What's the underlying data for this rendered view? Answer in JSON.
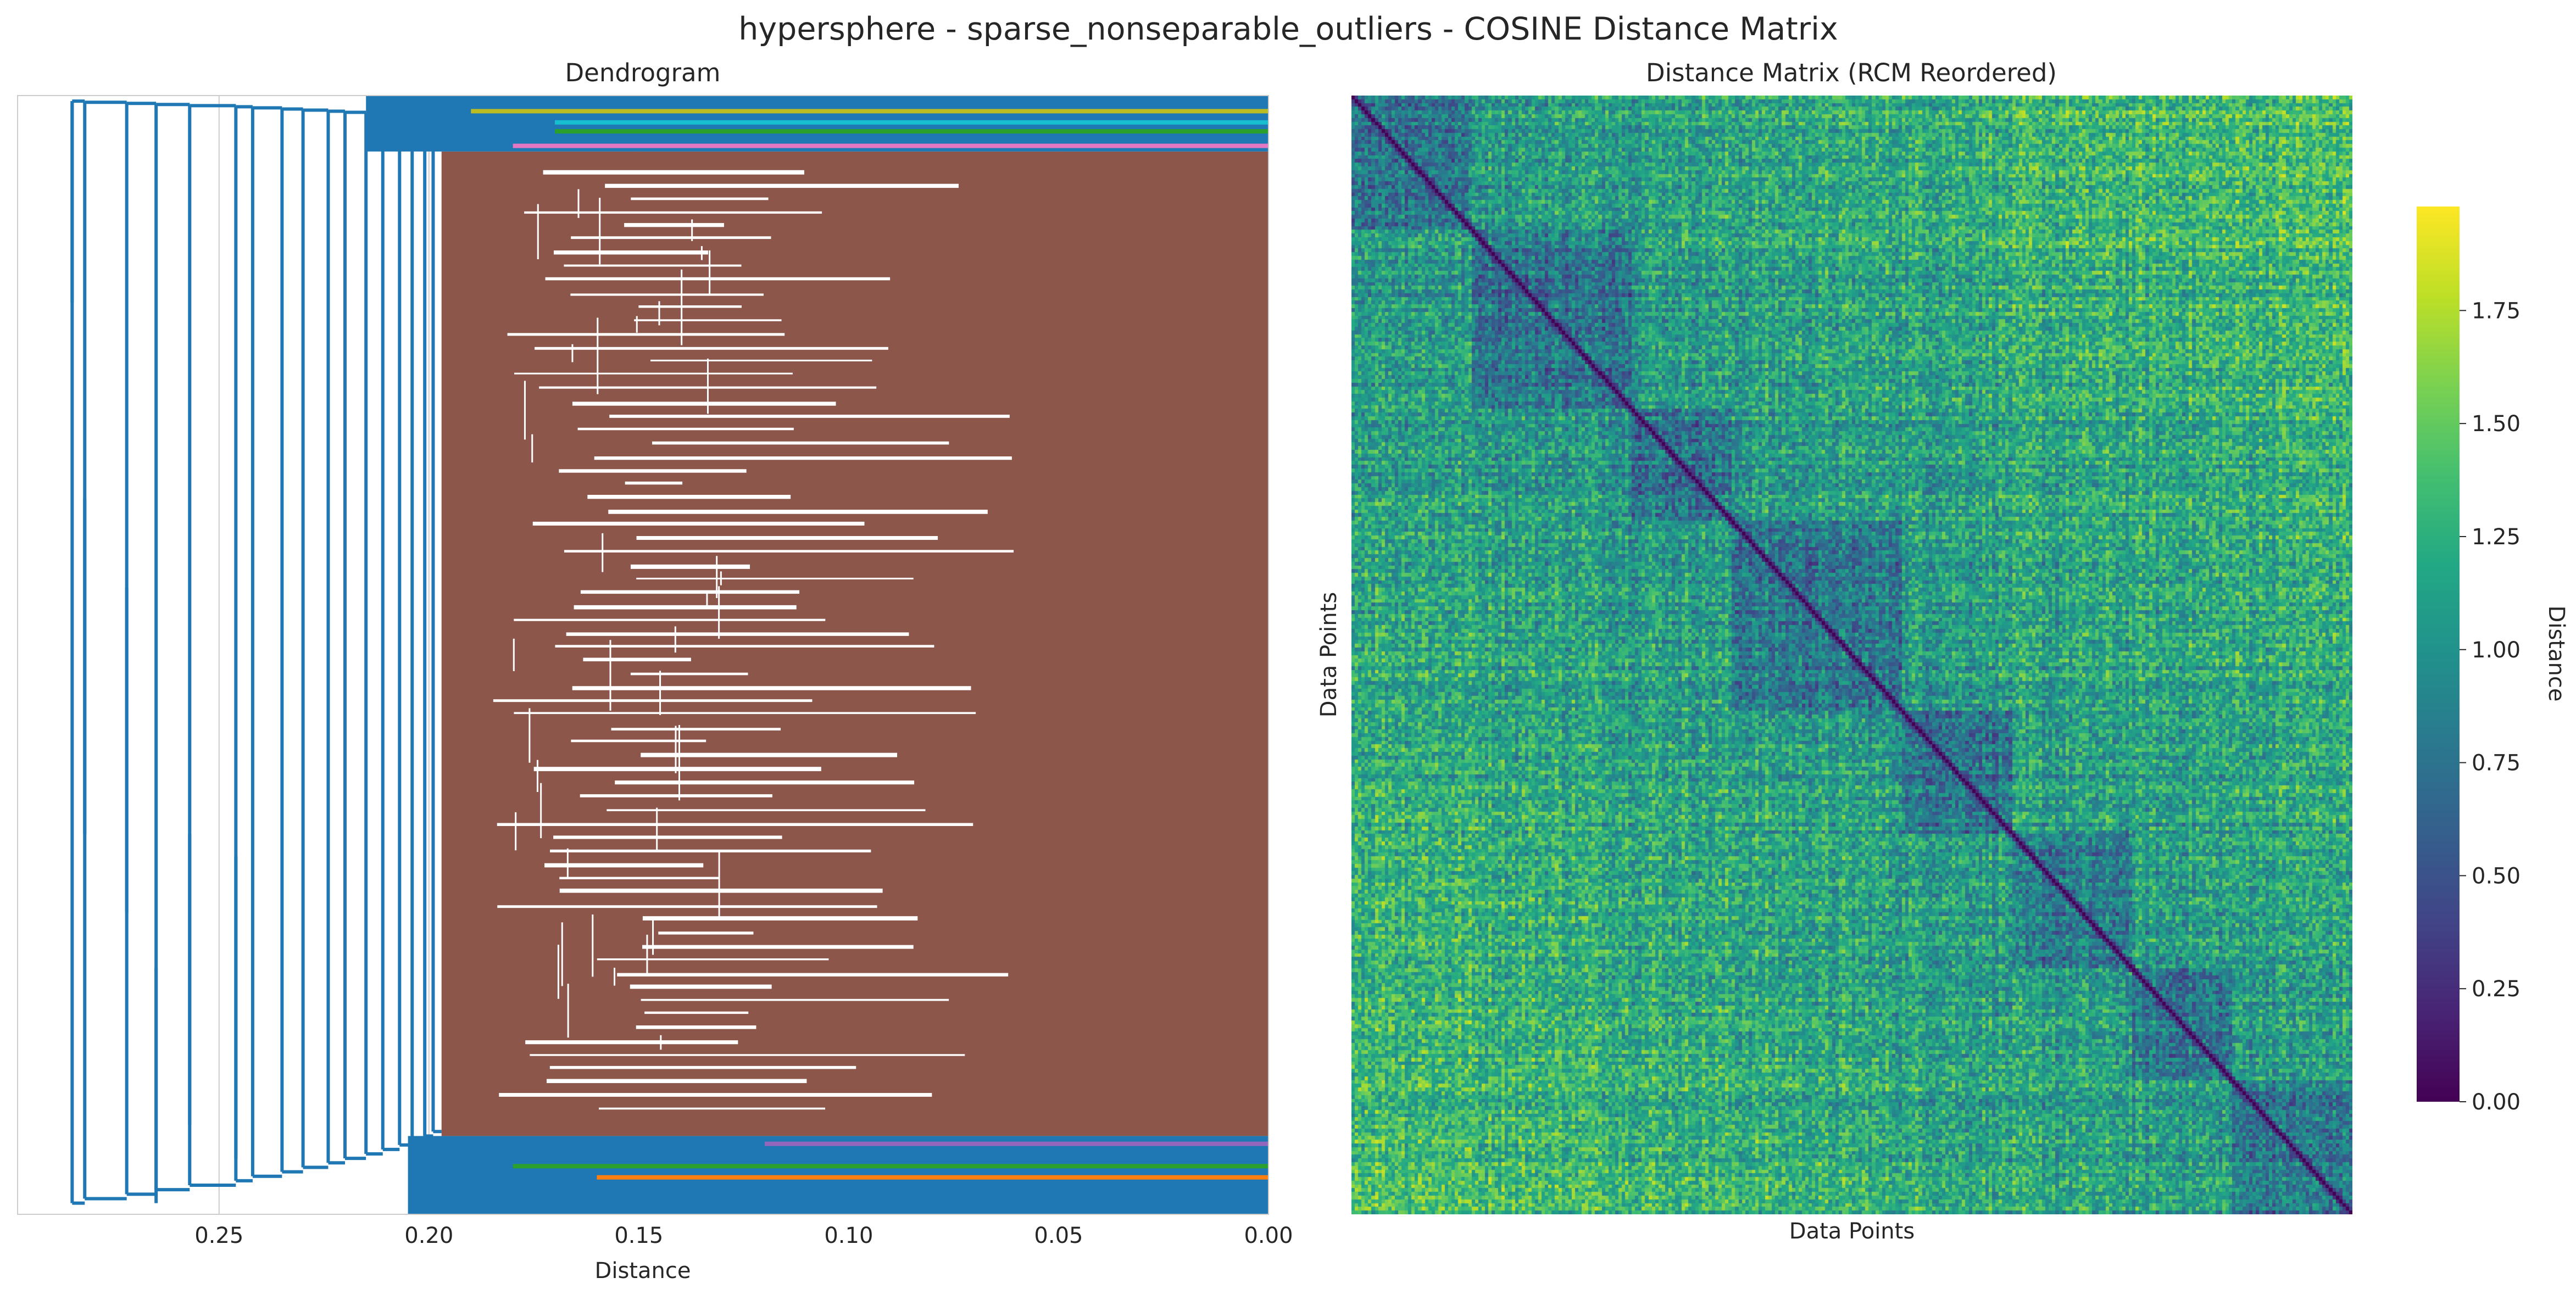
{
  "figure": {
    "title": "hypersphere - sparse_nonseparable_outliers - COSINE Distance Matrix"
  },
  "colors": {
    "primary_link": "#1f77b4",
    "cluster_main": "#8c564b",
    "cluster_orange": "#ff7f0e",
    "cluster_green": "#2ca02c",
    "cluster_pink": "#e377c2",
    "cluster_purple": "#9467bd",
    "cluster_olive": "#bcbd22",
    "cluster_teal": "#17becf"
  },
  "chart_data": [
    {
      "type": "dendrogram",
      "title": "Dendrogram",
      "xlabel": "Distance",
      "ylabel": "",
      "xlim": [
        0.298,
        0.0
      ],
      "xticks": [
        0.25,
        0.2,
        0.15,
        0.1,
        0.05,
        0.0
      ],
      "xtick_labels": [
        "0.25",
        "0.20",
        "0.15",
        "0.10",
        "0.05",
        "0.00"
      ],
      "grid": true,
      "link_color": "#1f77b4",
      "main_cluster": {
        "color": "#8c564b",
        "merge_distance": 0.197,
        "top_fraction": 0.05,
        "bottom_fraction": 0.93
      },
      "backbone_merges": [
        0.285,
        0.282,
        0.272,
        0.265,
        0.257,
        0.246,
        0.242,
        0.235,
        0.23,
        0.224,
        0.22,
        0.215,
        0.211,
        0.207,
        0.204,
        0.201,
        0.199
      ]
    },
    {
      "type": "heatmap",
      "title": "Distance Matrix (RCM Reordered)",
      "xlabel": "Data Points",
      "ylabel": "Data Points",
      "colormap": "viridis",
      "value_range": [
        0.0,
        1.98
      ],
      "colorbar": {
        "label": "Distance",
        "ticks": [
          0.0,
          0.25,
          0.5,
          0.75,
          1.0,
          1.25,
          1.5,
          1.75
        ],
        "tick_labels": [
          "0.00",
          "0.25",
          "0.50",
          "0.75",
          "1.00",
          "1.25",
          "1.50",
          "1.75"
        ]
      },
      "diagonal_value": 0.0
    }
  ]
}
